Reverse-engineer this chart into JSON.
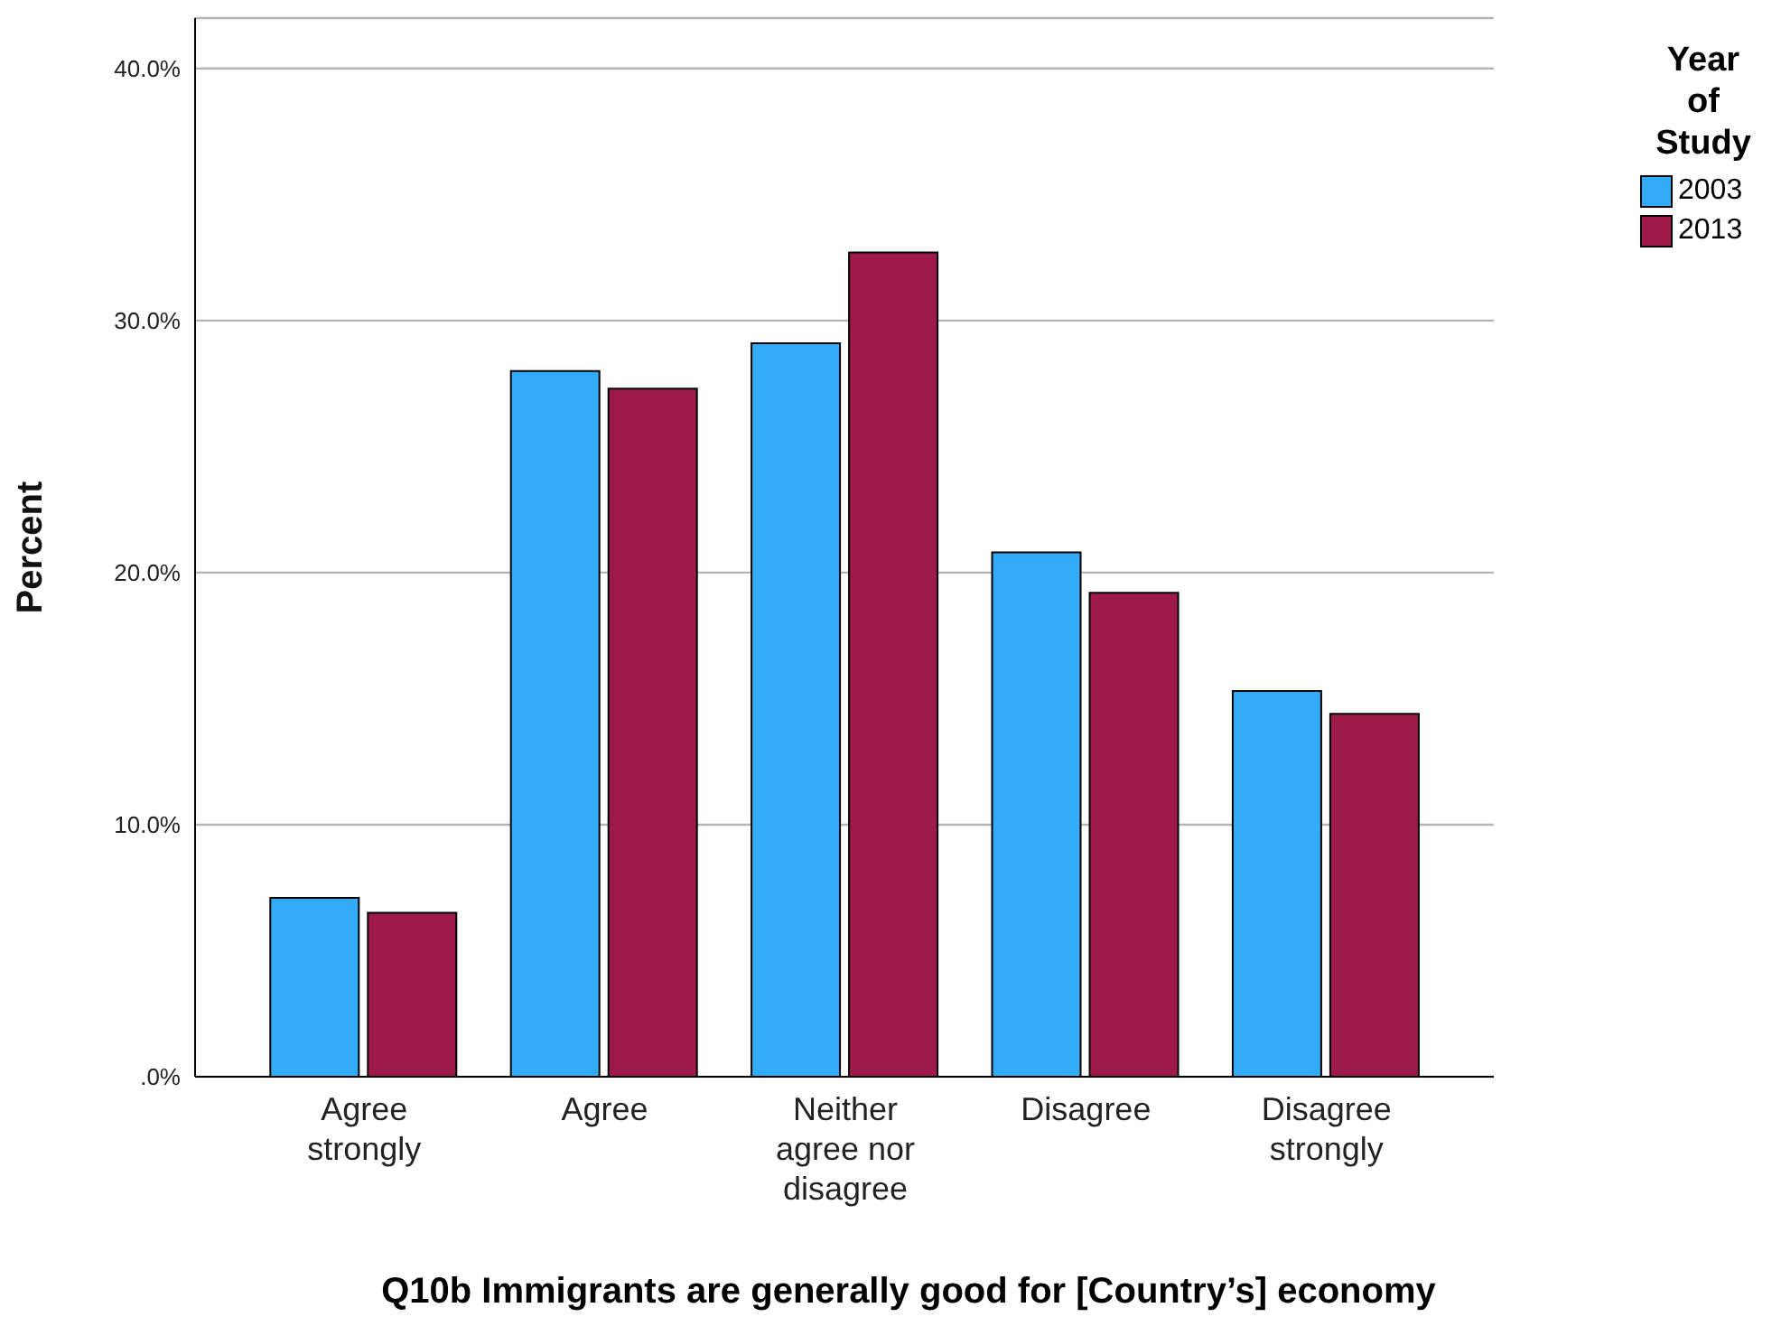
{
  "chart_data": {
    "type": "bar",
    "xlabel": "Q10b Immigrants are generally good for [Country’s] economy",
    "ylabel": "Percent",
    "legend_title": "Year of Study",
    "categories": [
      "Agree strongly",
      "Agree",
      "Neither agree nor disagree",
      "Disagree",
      "Disagree strongly"
    ],
    "series": [
      {
        "name": "2003",
        "color": "#33abf9",
        "values": [
          7.1,
          28.0,
          29.1,
          20.8,
          15.3
        ]
      },
      {
        "name": "2013",
        "color": "#9e1a4a",
        "values": [
          6.5,
          27.3,
          32.7,
          19.2,
          14.4
        ]
      }
    ],
    "ylim": [
      0,
      42
    ],
    "yticks": [
      {
        "value": 0,
        "label": ".0%"
      },
      {
        "value": 10,
        "label": "10.0%"
      },
      {
        "value": 20,
        "label": "20.0%"
      },
      {
        "value": 30,
        "label": "30.0%"
      },
      {
        "value": 40,
        "label": "40.0%"
      }
    ],
    "grid": "y",
    "legend": "top right"
  }
}
